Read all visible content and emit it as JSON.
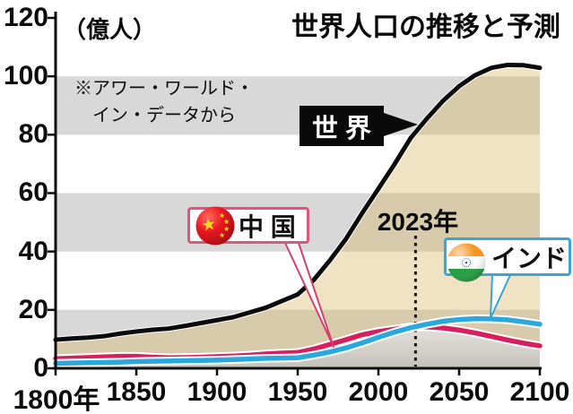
{
  "title": "世界人口の推移と予測",
  "y_axis": {
    "unit_label": "（億人）",
    "tick_labels": [
      "0",
      "20",
      "40",
      "60",
      "80",
      "100",
      "120"
    ]
  },
  "x_axis": {
    "tick_labels": [
      "1800年",
      "1850",
      "1900",
      "1950",
      "2000",
      "2050",
      "2100"
    ]
  },
  "source_note": {
    "line1": "※アワー・ワールド・",
    "line2": "イン・データから"
  },
  "annotations": {
    "marker_label": "2023年",
    "world_label": "世 界",
    "china_label": "中 国",
    "india_label": "インド"
  },
  "colors": {
    "world_line": "#0b0b0b",
    "china_line": "#d91e5e",
    "india_line": "#2aa7dd",
    "line_casing": "#ffffff",
    "china_box_border": "#e0557d",
    "india_box_border": "#3aa6d6",
    "china_callout": "#d4406e",
    "india_callout": "#35a3d3",
    "band_gray": "#d8d8d8",
    "area_beige": "rgba(216,186,106,0.40)",
    "under_area_top": "#ffffff",
    "under_area_bottom": "#c3c1bc",
    "axis": "#0c0c0c",
    "marker_line": "#111111"
  },
  "chart_data": {
    "type": "line",
    "title": "世界人口の推移と予測",
    "ylabel": "億人",
    "xlim": [
      1800,
      2100
    ],
    "ylim": [
      0,
      120
    ],
    "x_tick_years": [
      1800,
      1850,
      1900,
      1950,
      2000,
      2050,
      2100
    ],
    "y_tick_values": [
      0,
      20,
      40,
      60,
      80,
      100,
      120
    ],
    "marker_year": 2023,
    "years": [
      1800,
      1810,
      1820,
      1830,
      1840,
      1850,
      1860,
      1870,
      1880,
      1890,
      1900,
      1910,
      1920,
      1930,
      1940,
      1950,
      1960,
      1970,
      1980,
      1990,
      2000,
      2010,
      2020,
      2030,
      2040,
      2050,
      2060,
      2070,
      2080,
      2090,
      2100
    ],
    "series": [
      {
        "name": "世界",
        "key": "world",
        "values": [
          9.8,
          10.2,
          10.5,
          11.0,
          11.9,
          12.6,
          13.2,
          13.6,
          14.5,
          15.5,
          16.5,
          17.5,
          19.1,
          20.7,
          23.0,
          25.3,
          30.3,
          37.0,
          44.4,
          53.2,
          61.5,
          69.9,
          78.9,
          85.5,
          91.6,
          96.6,
          100.4,
          102.9,
          103.9,
          103.8,
          102.9
        ]
      },
      {
        "name": "中国",
        "key": "china",
        "values": [
          3.3,
          3.5,
          3.7,
          3.9,
          4.1,
          4.1,
          3.8,
          3.6,
          3.7,
          3.8,
          4.0,
          4.2,
          4.5,
          4.9,
          5.2,
          5.4,
          6.6,
          8.2,
          9.8,
          11.5,
          12.6,
          13.4,
          14.2,
          14.2,
          13.8,
          13.1,
          12.1,
          10.9,
          9.7,
          8.6,
          7.7
        ]
      },
      {
        "name": "インド",
        "key": "india",
        "values": [
          1.7,
          1.8,
          1.9,
          2.0,
          2.1,
          2.3,
          2.4,
          2.5,
          2.6,
          2.7,
          2.8,
          3.0,
          3.2,
          3.4,
          3.5,
          3.6,
          4.5,
          5.6,
          7.0,
          8.7,
          10.6,
          12.4,
          13.9,
          15.1,
          16.1,
          16.7,
          17.0,
          16.9,
          16.6,
          15.9,
          15.1
        ]
      }
    ],
    "legend_position": "on-chart callout labels",
    "grid": "alternating horizontal gray bands every 20"
  }
}
